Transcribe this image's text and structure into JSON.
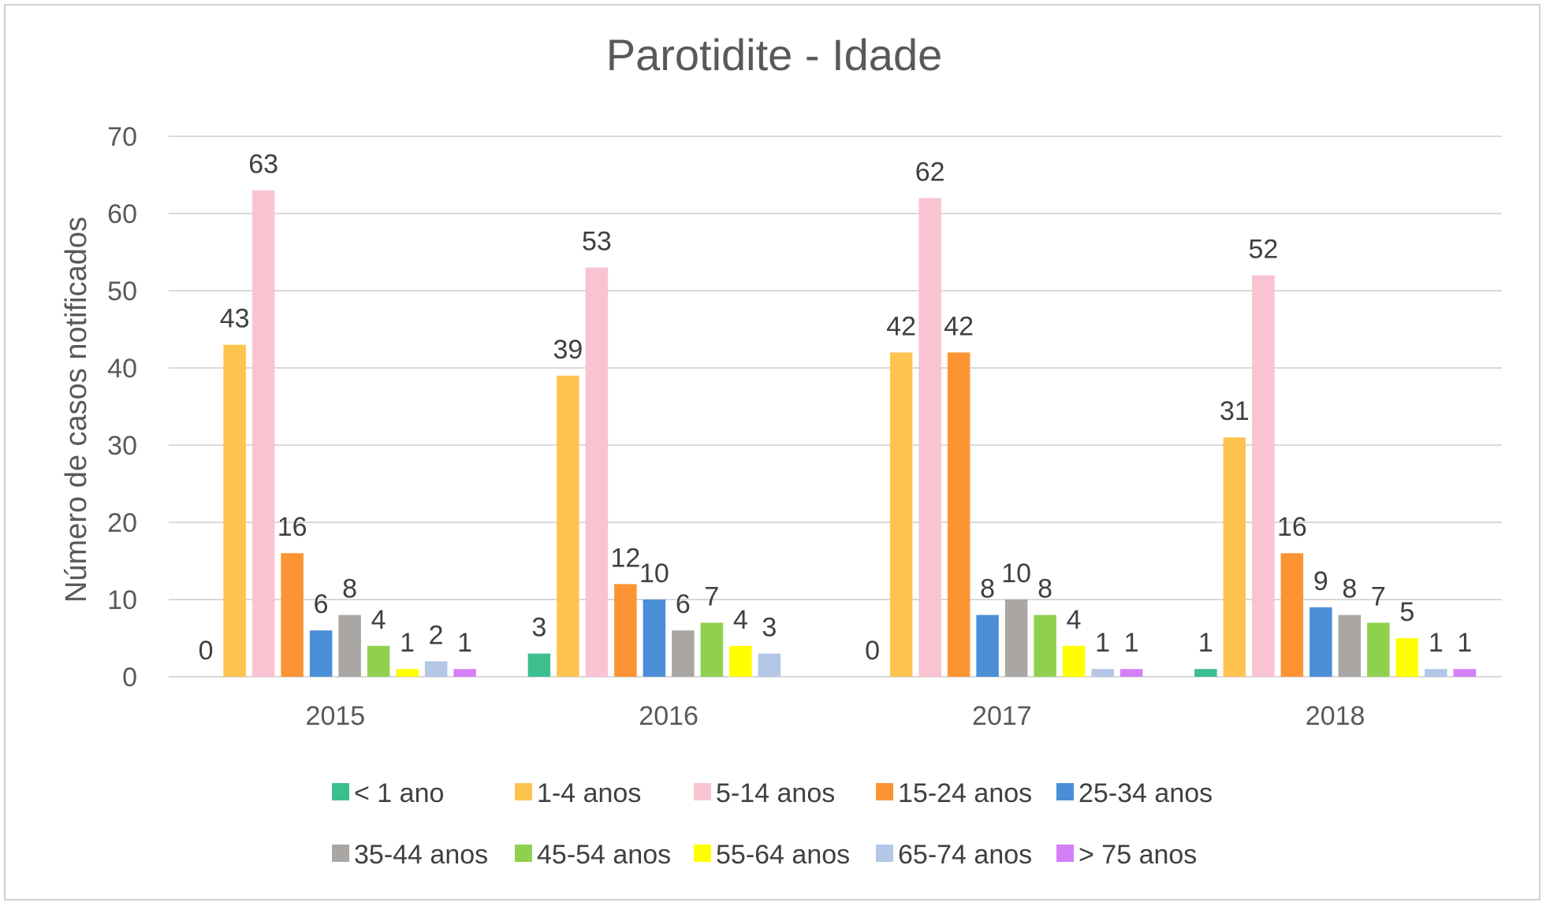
{
  "chart_data": {
    "type": "bar",
    "title": "Parotidite - Idade",
    "xlabel": "",
    "ylabel": "Número de casos notificados",
    "ylim": [
      0,
      70
    ],
    "yticks": [
      0,
      10,
      20,
      30,
      40,
      50,
      60,
      70
    ],
    "grid": true,
    "legend": "bottom",
    "categories": [
      "2015",
      "2016",
      "2017",
      "2018"
    ],
    "series": [
      {
        "name": "< 1 ano",
        "color": "#3cbf8f",
        "values": [
          0,
          3,
          0,
          1
        ]
      },
      {
        "name": "1-4 anos",
        "color": "#fec44f",
        "values": [
          43,
          39,
          42,
          31
        ]
      },
      {
        "name": "5-14 anos",
        "color": "#f9c3d2",
        "values": [
          63,
          53,
          62,
          52
        ]
      },
      {
        "name": "15-24 anos",
        "color": "#fc9433",
        "values": [
          16,
          12,
          42,
          16
        ]
      },
      {
        "name": "25-34 anos",
        "color": "#4a8fd6",
        "values": [
          6,
          10,
          8,
          9
        ]
      },
      {
        "name": "35-44 anos",
        "color": "#aaa6a4",
        "values": [
          8,
          6,
          10,
          8
        ]
      },
      {
        "name": "45-54 anos",
        "color": "#8fd14f",
        "values": [
          4,
          7,
          8,
          7
        ]
      },
      {
        "name": "55-64 anos",
        "color": "#ffff00",
        "values": [
          1,
          4,
          4,
          5
        ]
      },
      {
        "name": "65-74 anos",
        "color": "#b4c7e7",
        "values": [
          2,
          3,
          1,
          1
        ]
      },
      {
        "name": "> 75 anos",
        "color": "#d47ff7",
        "values": [
          1,
          null,
          1,
          1
        ]
      }
    ],
    "data_labels": [
      [
        "0",
        "43",
        "63",
        "16",
        "6",
        "8",
        "4",
        "1",
        "2",
        "1"
      ],
      [
        "3",
        "39",
        "53",
        "12",
        "10",
        "6",
        "7",
        "4",
        "3",
        ""
      ],
      [
        "0",
        "42",
        "62",
        "42",
        "8",
        "10",
        "8",
        "4",
        "1",
        "1"
      ],
      [
        "1",
        "31",
        "52",
        "16",
        "9",
        "8",
        "7",
        "5",
        "1",
        "1"
      ]
    ]
  }
}
